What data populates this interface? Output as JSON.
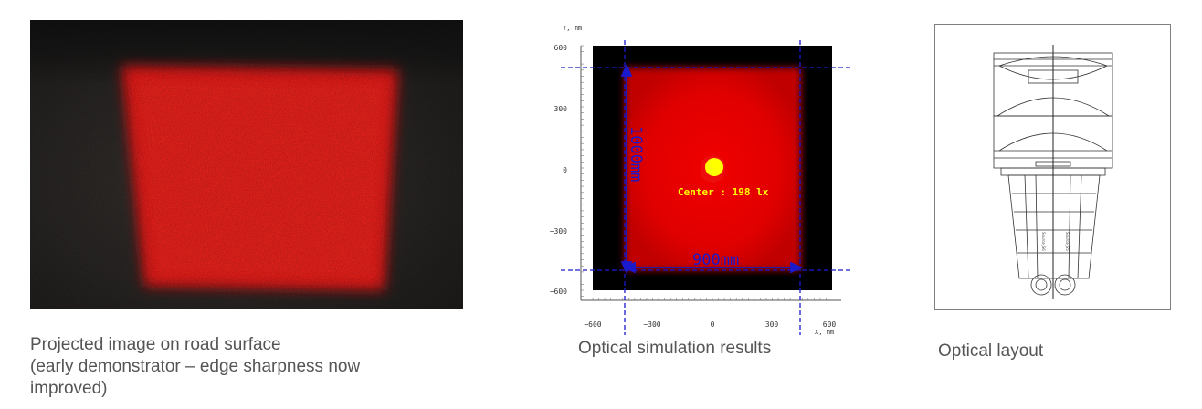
{
  "panels": [
    {
      "caption_lines": [
        "Projected image on road surface",
        "(early demonstrator – edge sharpness now",
        "improved)"
      ]
    },
    {
      "caption": "Optical simulation results"
    },
    {
      "caption": "Optical layout"
    }
  ],
  "simulation": {
    "y_axis_label": "Y, mm",
    "x_axis_label": "X, mm",
    "y_ticks": [
      "600",
      "300",
      "0",
      "−300",
      "−600"
    ],
    "x_ticks": [
      "−600",
      "−300",
      "0",
      "300",
      "600"
    ],
    "height_dim": "1000mm",
    "width_dim": "900mm",
    "center_label": "Center :  198 lx",
    "colors": {
      "field": "#000000",
      "spot": "#e00000",
      "dimension": "#1a1acc",
      "marker": "#ffff00"
    }
  },
  "layout_labels": [
    "Source_S6",
    "Source_S5"
  ]
}
